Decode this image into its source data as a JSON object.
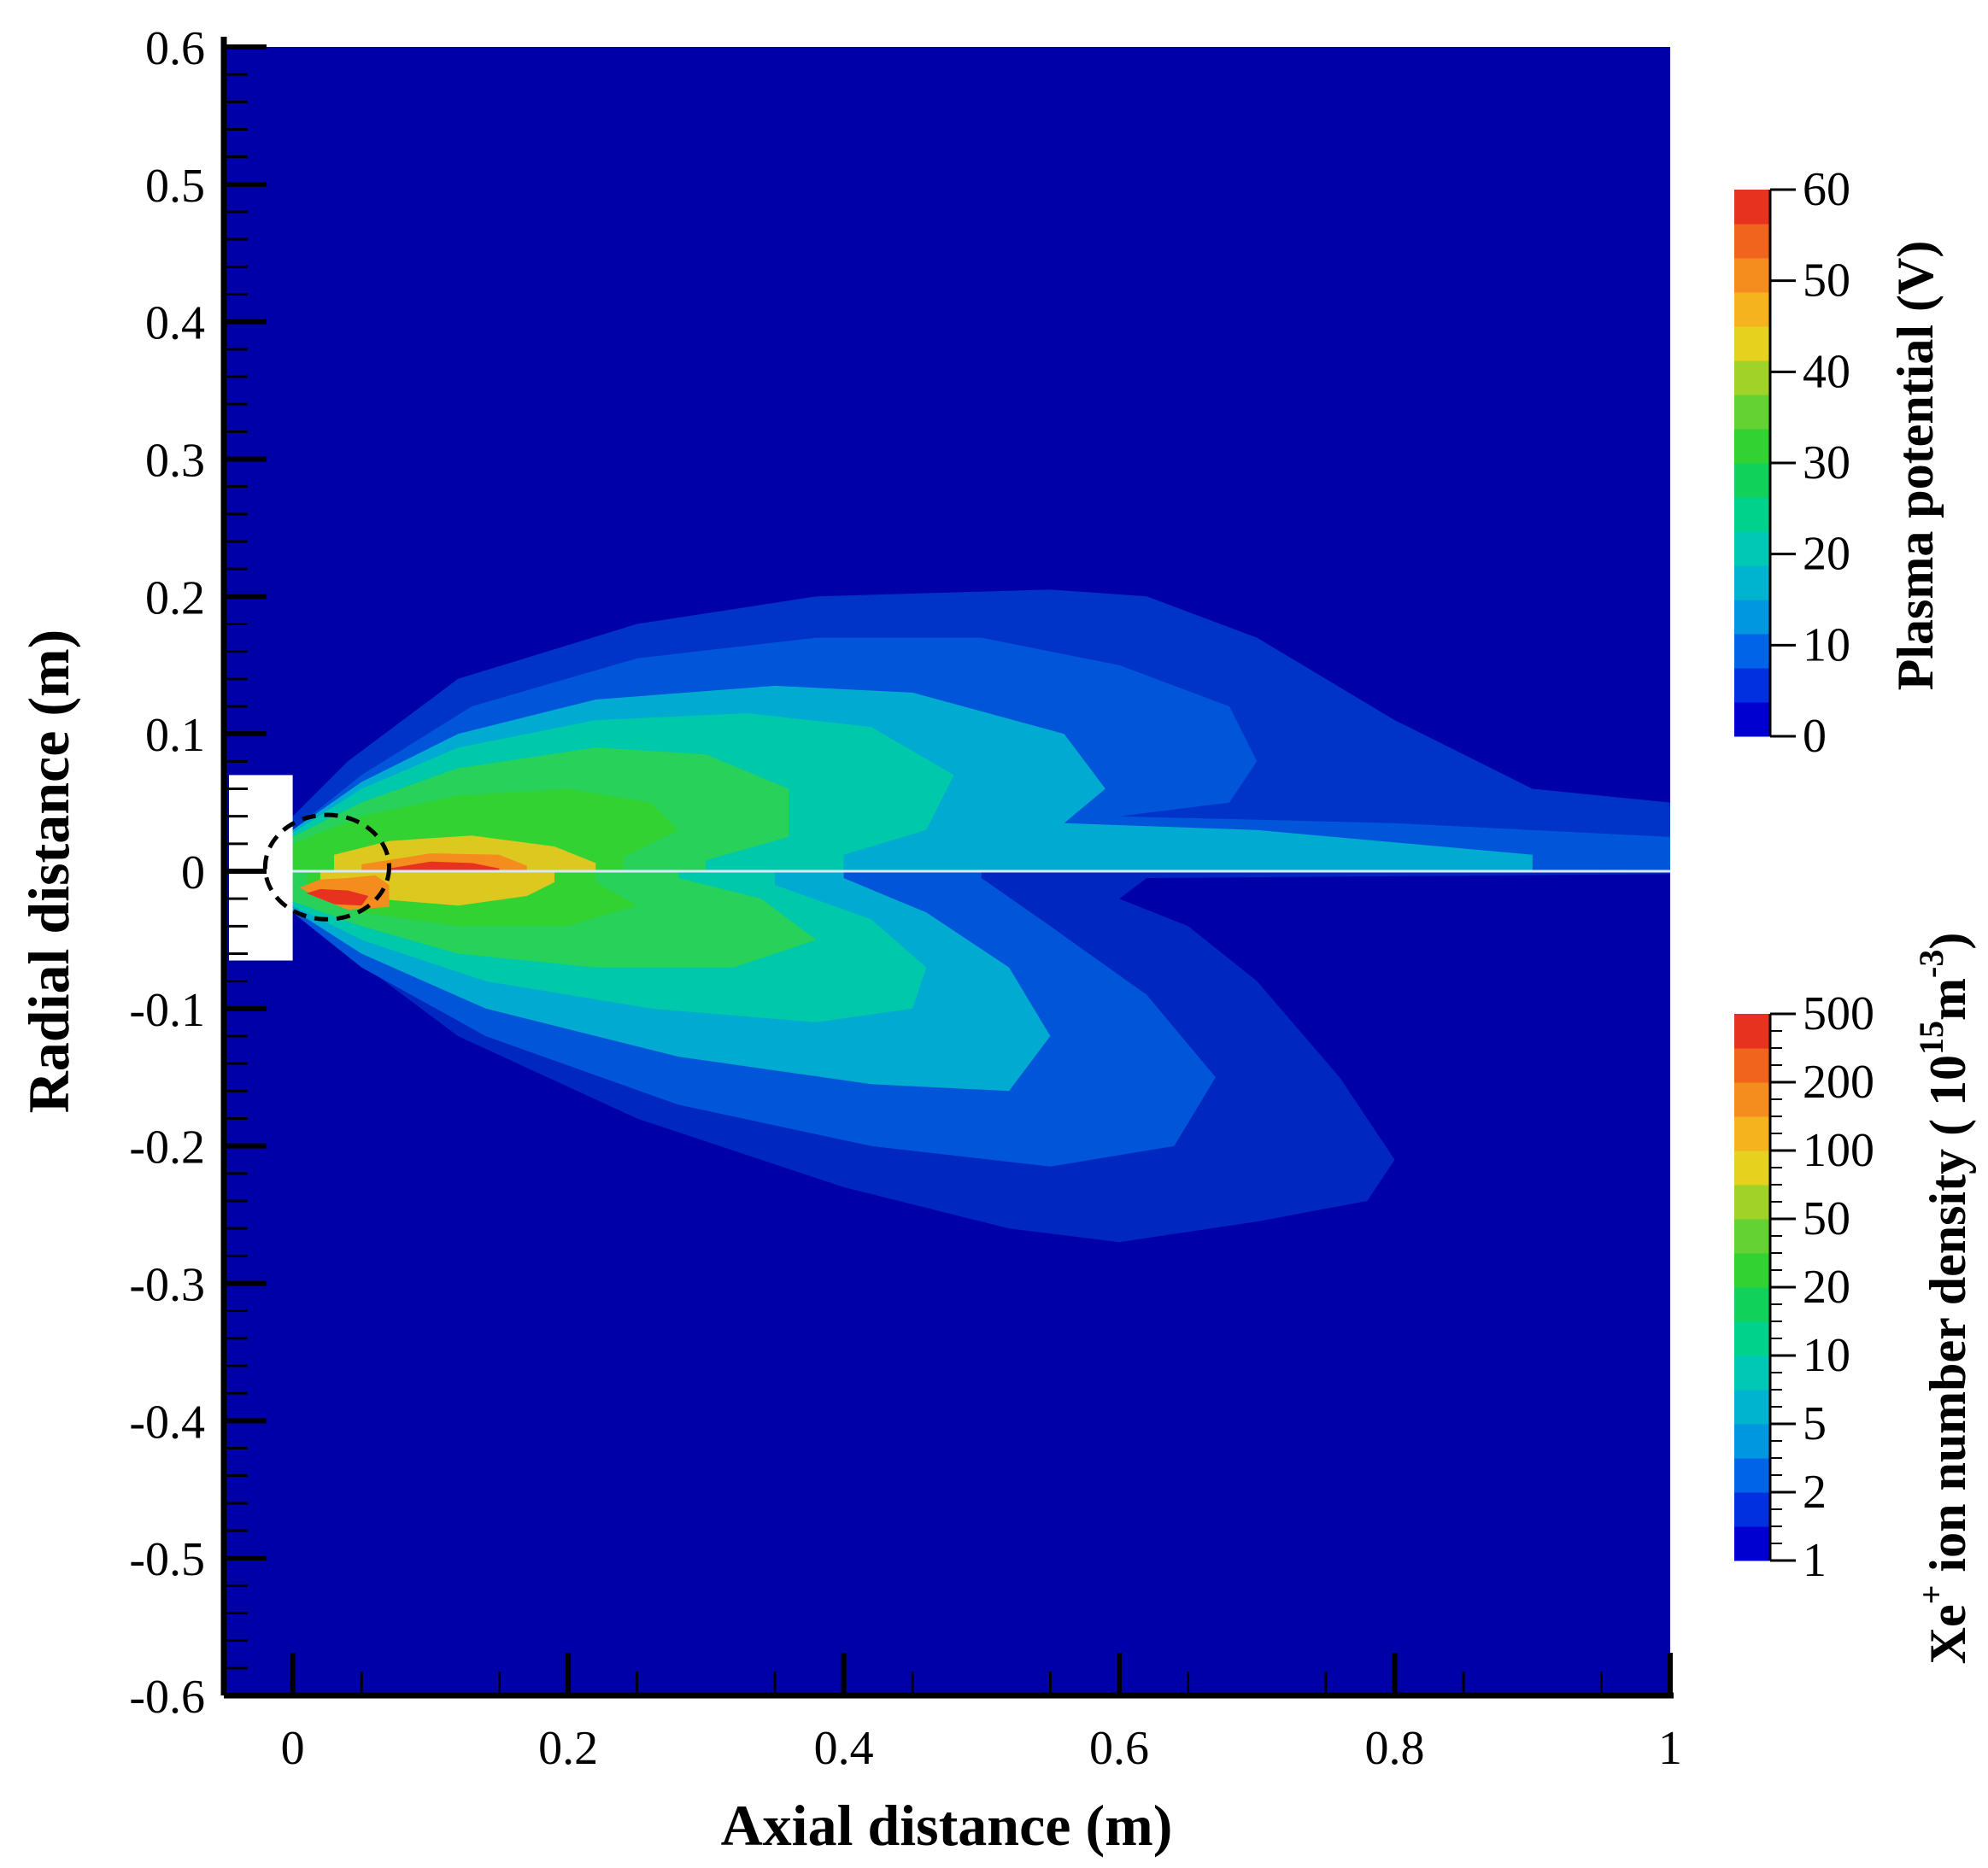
{
  "chart_data": {
    "type": "heatmap",
    "xlabel": "Axial distance (m)",
    "ylabel": "Radial distance (m)",
    "xlim": [
      -0.05,
      1.0
    ],
    "ylim": [
      -0.6,
      0.6
    ],
    "x_ticks": [
      "0",
      "0.2",
      "0.4",
      "0.6",
      "0.8",
      "1"
    ],
    "x_tick_values": [
      0,
      0.2,
      0.4,
      0.6,
      0.8,
      1.0
    ],
    "y_ticks": [
      "0.6",
      "0.5",
      "0.4",
      "0.3",
      "0.2",
      "0.1",
      "0",
      "-0.1",
      "-0.2",
      "-0.3",
      "-0.4",
      "-0.5",
      "-0.6"
    ],
    "y_tick_values": [
      0.6,
      0.5,
      0.4,
      0.3,
      0.2,
      0.1,
      0,
      -0.1,
      -0.2,
      -0.3,
      -0.4,
      -0.5,
      -0.6
    ],
    "background_color": "#0000a8",
    "upper_half": {
      "field": "Plasma potential",
      "colorbar": {
        "title": "Plasma potential (V)",
        "tick_labels": [
          "60",
          "50",
          "40",
          "30",
          "20",
          "10",
          "0"
        ],
        "tick_values": [
          60,
          50,
          40,
          30,
          20,
          10,
          0
        ]
      },
      "contours": [
        {
          "level": 5,
          "color": "#0033c8",
          "points": [
            [
              0,
              0.04
            ],
            [
              0.04,
              0.08
            ],
            [
              0.12,
              0.14
            ],
            [
              0.25,
              0.18
            ],
            [
              0.38,
              0.2
            ],
            [
              0.55,
              0.205
            ],
            [
              0.62,
              0.2
            ],
            [
              0.7,
              0.17
            ],
            [
              0.8,
              0.11
            ],
            [
              0.86,
              0.08
            ],
            [
              0.9,
              0.06
            ],
            [
              1.0,
              0.05
            ],
            [
              1.0,
              0.0
            ],
            [
              0,
              0.0
            ]
          ]
        },
        {
          "level": 10,
          "color": "#0055d8",
          "points": [
            [
              0,
              0.03
            ],
            [
              0.05,
              0.07
            ],
            [
              0.13,
              0.12
            ],
            [
              0.25,
              0.155
            ],
            [
              0.38,
              0.17
            ],
            [
              0.5,
              0.17
            ],
            [
              0.6,
              0.15
            ],
            [
              0.68,
              0.12
            ],
            [
              0.7,
              0.08
            ],
            [
              0.68,
              0.05
            ],
            [
              0.6,
              0.04
            ],
            [
              0.8,
              0.035
            ],
            [
              1.0,
              0.025
            ],
            [
              1.0,
              0.0
            ],
            [
              0,
              0.0
            ]
          ]
        },
        {
          "level": 15,
          "color": "#00aad0",
          "points": [
            [
              0,
              0.03
            ],
            [
              0.05,
              0.065
            ],
            [
              0.12,
              0.1
            ],
            [
              0.22,
              0.125
            ],
            [
              0.35,
              0.135
            ],
            [
              0.45,
              0.13
            ],
            [
              0.56,
              0.1
            ],
            [
              0.59,
              0.06
            ],
            [
              0.56,
              0.035
            ],
            [
              0.7,
              0.03
            ],
            [
              0.9,
              0.012
            ],
            [
              0.9,
              0.0
            ],
            [
              0,
              0.0
            ]
          ]
        },
        {
          "level": 20,
          "color": "#00c8aa",
          "points": [
            [
              0,
              0.028
            ],
            [
              0.05,
              0.06
            ],
            [
              0.12,
              0.09
            ],
            [
              0.22,
              0.11
            ],
            [
              0.33,
              0.115
            ],
            [
              0.42,
              0.105
            ],
            [
              0.48,
              0.07
            ],
            [
              0.46,
              0.03
            ],
            [
              0.4,
              0.012
            ],
            [
              0.4,
              0.0
            ],
            [
              0,
              0.0
            ]
          ]
        },
        {
          "level": 30,
          "color": "#28d25a",
          "points": [
            [
              0,
              0.025
            ],
            [
              0.05,
              0.05
            ],
            [
              0.12,
              0.075
            ],
            [
              0.22,
              0.09
            ],
            [
              0.3,
              0.085
            ],
            [
              0.36,
              0.06
            ],
            [
              0.36,
              0.025
            ],
            [
              0.3,
              0.008
            ],
            [
              0.3,
              0.0
            ],
            [
              0,
              0.0
            ]
          ]
        },
        {
          "level": 35,
          "color": "#32d232",
          "points": [
            [
              0,
              0.02
            ],
            [
              0.05,
              0.04
            ],
            [
              0.12,
              0.055
            ],
            [
              0.2,
              0.06
            ],
            [
              0.26,
              0.05
            ],
            [
              0.28,
              0.03
            ],
            [
              0.24,
              0.01
            ],
            [
              0.24,
              0.0
            ],
            [
              0,
              0.0
            ]
          ]
        },
        {
          "level": 45,
          "color": "#dcc81e",
          "points": [
            [
              0.03,
              0.012
            ],
            [
              0.07,
              0.022
            ],
            [
              0.13,
              0.026
            ],
            [
              0.19,
              0.018
            ],
            [
              0.22,
              0.006
            ],
            [
              0.22,
              0.0
            ],
            [
              0.03,
              0.0
            ]
          ]
        },
        {
          "level": 50,
          "color": "#f58c1e",
          "points": [
            [
              0.05,
              0.005
            ],
            [
              0.1,
              0.013
            ],
            [
              0.15,
              0.012
            ],
            [
              0.17,
              0.004
            ],
            [
              0.17,
              0.0
            ],
            [
              0.05,
              0.0
            ]
          ]
        },
        {
          "level": 60,
          "color": "#e6321e",
          "points": [
            [
              0.07,
              0.002
            ],
            [
              0.1,
              0.007
            ],
            [
              0.13,
              0.006
            ],
            [
              0.15,
              0.002
            ],
            [
              0.15,
              0.0
            ],
            [
              0.07,
              0.0
            ]
          ]
        }
      ]
    },
    "lower_half": {
      "field": "Xe+ ion number density",
      "colorbar": {
        "title": "Xe+ ion number density (10^15 m^-3)",
        "tick_labels": [
          "500",
          "200",
          "100",
          "50",
          "20",
          "10",
          "5",
          "2",
          "1"
        ],
        "tick_values": [
          500,
          200,
          100,
          50,
          20,
          10,
          5,
          2,
          1
        ]
      },
      "contours": [
        {
          "level": 1.5,
          "color": "#0028c0",
          "points": [
            [
              0,
              -0.03
            ],
            [
              0.04,
              -0.06
            ],
            [
              0.12,
              -0.12
            ],
            [
              0.25,
              -0.18
            ],
            [
              0.4,
              -0.23
            ],
            [
              0.52,
              -0.26
            ],
            [
              0.6,
              -0.27
            ],
            [
              0.7,
              -0.255
            ],
            [
              0.78,
              -0.24
            ],
            [
              0.8,
              -0.21
            ],
            [
              0.76,
              -0.15
            ],
            [
              0.7,
              -0.08
            ],
            [
              0.65,
              -0.04
            ],
            [
              0.6,
              -0.02
            ],
            [
              0.62,
              -0.005
            ],
            [
              1.0,
              -0.002
            ],
            [
              1.0,
              0.0
            ],
            [
              0,
              0.0
            ]
          ]
        },
        {
          "level": 3,
          "color": "#0055d8",
          "points": [
            [
              0,
              -0.03
            ],
            [
              0.05,
              -0.07
            ],
            [
              0.14,
              -0.12
            ],
            [
              0.28,
              -0.17
            ],
            [
              0.42,
              -0.2
            ],
            [
              0.55,
              -0.215
            ],
            [
              0.64,
              -0.2
            ],
            [
              0.67,
              -0.15
            ],
            [
              0.62,
              -0.09
            ],
            [
              0.55,
              -0.04
            ],
            [
              0.5,
              -0.005
            ],
            [
              0.5,
              0.0
            ],
            [
              0,
              0.0
            ]
          ]
        },
        {
          "level": 5,
          "color": "#00aad0",
          "points": [
            [
              0,
              -0.028
            ],
            [
              0.05,
              -0.06
            ],
            [
              0.14,
              -0.1
            ],
            [
              0.28,
              -0.135
            ],
            [
              0.42,
              -0.155
            ],
            [
              0.52,
              -0.16
            ],
            [
              0.55,
              -0.12
            ],
            [
              0.52,
              -0.07
            ],
            [
              0.46,
              -0.03
            ],
            [
              0.4,
              -0.005
            ],
            [
              0.4,
              0.0
            ],
            [
              0,
              0.0
            ]
          ]
        },
        {
          "level": 10,
          "color": "#00c8aa",
          "points": [
            [
              0,
              -0.025
            ],
            [
              0.05,
              -0.05
            ],
            [
              0.14,
              -0.08
            ],
            [
              0.26,
              -0.1
            ],
            [
              0.38,
              -0.11
            ],
            [
              0.45,
              -0.1
            ],
            [
              0.46,
              -0.07
            ],
            [
              0.42,
              -0.035
            ],
            [
              0.35,
              -0.01
            ],
            [
              0.35,
              0.0
            ],
            [
              0,
              0.0
            ]
          ]
        },
        {
          "level": 20,
          "color": "#28d25a",
          "points": [
            [
              0,
              -0.022
            ],
            [
              0.05,
              -0.04
            ],
            [
              0.12,
              -0.06
            ],
            [
              0.22,
              -0.07
            ],
            [
              0.32,
              -0.07
            ],
            [
              0.38,
              -0.05
            ],
            [
              0.34,
              -0.02
            ],
            [
              0.28,
              -0.005
            ],
            [
              0.28,
              0.0
            ],
            [
              0,
              0.0
            ]
          ]
        },
        {
          "level": 50,
          "color": "#32d232",
          "points": [
            [
              0.01,
              -0.015
            ],
            [
              0.05,
              -0.03
            ],
            [
              0.12,
              -0.04
            ],
            [
              0.2,
              -0.04
            ],
            [
              0.25,
              -0.025
            ],
            [
              0.22,
              -0.008
            ],
            [
              0.22,
              0.0
            ],
            [
              0.01,
              0.0
            ]
          ]
        },
        {
          "level": 100,
          "color": "#dcc81e",
          "points": [
            [
              0.02,
              -0.012
            ],
            [
              0.06,
              -0.02
            ],
            [
              0.12,
              -0.025
            ],
            [
              0.17,
              -0.018
            ],
            [
              0.19,
              -0.008
            ],
            [
              0.19,
              0.0
            ],
            [
              0.02,
              0.0
            ]
          ]
        },
        {
          "level": 200,
          "color": "#f58c1e",
          "points": [
            [
              0.005,
              -0.012
            ],
            [
              0.02,
              -0.02
            ],
            [
              0.04,
              -0.028
            ],
            [
              0.07,
              -0.026
            ],
            [
              0.07,
              -0.01
            ],
            [
              0.06,
              -0.003
            ],
            [
              0.04,
              -0.005
            ],
            [
              0.02,
              -0.006
            ]
          ]
        },
        {
          "level": 500,
          "color": "#e6321e",
          "points": [
            [
              0.01,
              -0.016
            ],
            [
              0.03,
              -0.024
            ],
            [
              0.05,
              -0.025
            ],
            [
              0.055,
              -0.018
            ],
            [
              0.04,
              -0.014
            ],
            [
              0.02,
              -0.013
            ]
          ]
        }
      ]
    },
    "thruster_block": {
      "x_range": [
        -0.05,
        0.0
      ],
      "y_range": [
        -0.065,
        0.07
      ],
      "color": "#ffffff"
    },
    "annotation": {
      "type": "dashed-circle",
      "center": [
        0.025,
        0.003
      ],
      "radius_x": 0.045,
      "radius_y": 0.038,
      "color": "#000000"
    },
    "colors": {
      "potential_scale": [
        "#0000d0",
        "#0030e0",
        "#0064e8",
        "#0096e0",
        "#00b4d0",
        "#00c8b4",
        "#00d28c",
        "#10d25a",
        "#32d232",
        "#64d232",
        "#a0d228",
        "#e6d21e",
        "#f5b41e",
        "#f58c1e",
        "#f0641e",
        "#e6321e"
      ],
      "density_scale": [
        "#0000d0",
        "#0030e0",
        "#0064e8",
        "#0096e0",
        "#00b4d0",
        "#00c8b4",
        "#00d28c",
        "#10d25a",
        "#32d232",
        "#64d232",
        "#a0d228",
        "#e6d21e",
        "#f5b41e",
        "#f58c1e",
        "#f0641e",
        "#e6321e"
      ]
    }
  }
}
